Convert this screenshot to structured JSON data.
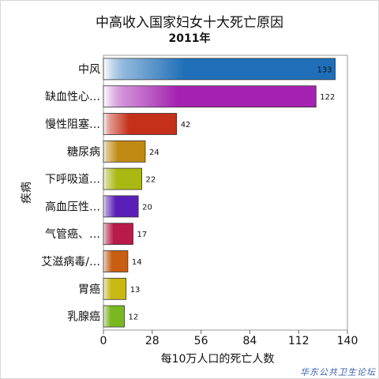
{
  "chart_data": {
    "type": "bar",
    "orientation": "horizontal",
    "title": "中高收入国家妇女十大死亡原因",
    "subtitle": "2011年",
    "xlabel": "每10万人口的死亡人数",
    "ylabel": "疾病",
    "xlim": [
      0,
      140
    ],
    "xticks": [
      0,
      28,
      56,
      84,
      112,
      140
    ],
    "grid": false,
    "legend": "none",
    "categories": [
      "中风",
      "缺血性心…",
      "慢性阻塞…",
      "糖尿病",
      "下呼吸道…",
      "高血压性…",
      "气管癌、…",
      "艾滋病毒/…",
      "胃癌",
      "乳腺癌"
    ],
    "values": [
      133,
      122,
      42,
      24,
      22,
      20,
      17,
      14,
      13,
      12
    ],
    "colors": [
      "#1f6fb8",
      "#a322b0",
      "#c5301a",
      "#c08a12",
      "#aab812",
      "#5a1fb8",
      "#b81a4a",
      "#c85e12",
      "#c8b812",
      "#7ab81f"
    ]
  },
  "watermark": "华东公共卫生论坛"
}
